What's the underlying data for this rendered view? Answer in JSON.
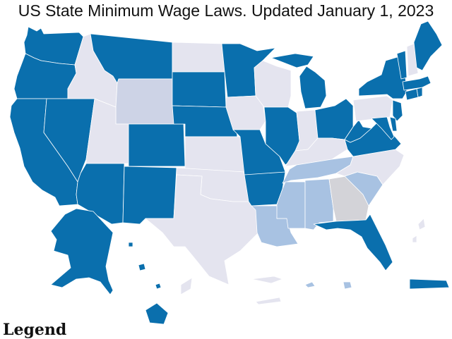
{
  "title": "US State Minimum Wage Laws. Updated January 1, 2023",
  "legend": {
    "heading": "Legend"
  },
  "colors": {
    "above_federal": "#0a6fad",
    "no_state_minimum": "#e4e4ef",
    "below_federal": "#cdd3e6",
    "equal_federal": "#a8c2e2",
    "light_gray": "#d3d3d8"
  },
  "states": [
    {
      "name": "Washington",
      "category": "above_federal"
    },
    {
      "name": "Oregon",
      "category": "above_federal"
    },
    {
      "name": "California",
      "category": "above_federal"
    },
    {
      "name": "Nevada",
      "category": "above_federal"
    },
    {
      "name": "Idaho",
      "category": "no_state_minimum"
    },
    {
      "name": "Montana",
      "category": "above_federal"
    },
    {
      "name": "Wyoming",
      "category": "below_federal"
    },
    {
      "name": "Utah",
      "category": "no_state_minimum"
    },
    {
      "name": "Arizona",
      "category": "above_federal"
    },
    {
      "name": "Colorado",
      "category": "above_federal"
    },
    {
      "name": "New Mexico",
      "category": "above_federal"
    },
    {
      "name": "North Dakota",
      "category": "no_state_minimum"
    },
    {
      "name": "South Dakota",
      "category": "above_federal"
    },
    {
      "name": "Nebraska",
      "category": "above_federal"
    },
    {
      "name": "Kansas",
      "category": "no_state_minimum"
    },
    {
      "name": "Oklahoma",
      "category": "no_state_minimum"
    },
    {
      "name": "Texas",
      "category": "no_state_minimum"
    },
    {
      "name": "Minnesota",
      "category": "above_federal"
    },
    {
      "name": "Iowa",
      "category": "no_state_minimum"
    },
    {
      "name": "Missouri",
      "category": "above_federal"
    },
    {
      "name": "Arkansas",
      "category": "above_federal"
    },
    {
      "name": "Louisiana",
      "category": "equal_federal"
    },
    {
      "name": "Wisconsin",
      "category": "no_state_minimum"
    },
    {
      "name": "Illinois",
      "category": "above_federal"
    },
    {
      "name": "Michigan",
      "category": "above_federal"
    },
    {
      "name": "Indiana",
      "category": "no_state_minimum"
    },
    {
      "name": "Ohio",
      "category": "above_federal"
    },
    {
      "name": "Kentucky",
      "category": "no_state_minimum"
    },
    {
      "name": "Tennessee",
      "category": "equal_federal"
    },
    {
      "name": "Mississippi",
      "category": "equal_federal"
    },
    {
      "name": "Alabama",
      "category": "equal_federal"
    },
    {
      "name": "Georgia",
      "category": "light_gray"
    },
    {
      "name": "Florida",
      "category": "above_federal"
    },
    {
      "name": "South Carolina",
      "category": "equal_federal"
    },
    {
      "name": "North Carolina",
      "category": "no_state_minimum"
    },
    {
      "name": "Virginia",
      "category": "above_federal"
    },
    {
      "name": "West Virginia",
      "category": "above_federal"
    },
    {
      "name": "Pennsylvania",
      "category": "no_state_minimum"
    },
    {
      "name": "New York",
      "category": "above_federal"
    },
    {
      "name": "Vermont",
      "category": "above_federal"
    },
    {
      "name": "New Hampshire",
      "category": "no_state_minimum"
    },
    {
      "name": "Maine",
      "category": "above_federal"
    },
    {
      "name": "Massachusetts",
      "category": "above_federal"
    },
    {
      "name": "Rhode Island",
      "category": "above_federal"
    },
    {
      "name": "Connecticut",
      "category": "above_federal"
    },
    {
      "name": "New Jersey",
      "category": "above_federal"
    },
    {
      "name": "Delaware",
      "category": "above_federal"
    },
    {
      "name": "Maryland",
      "category": "above_federal"
    },
    {
      "name": "Alaska",
      "category": "above_federal"
    },
    {
      "name": "Hawaii",
      "category": "above_federal"
    },
    {
      "name": "Puerto Rico",
      "category": "above_federal"
    },
    {
      "name": "U.S. Virgin Islands",
      "category": "no_state_minimum"
    },
    {
      "name": "American Samoa",
      "category": "equal_federal"
    },
    {
      "name": "Guam",
      "category": "equal_federal"
    },
    {
      "name": "Northern Mariana Islands",
      "category": "no_state_minimum"
    }
  ]
}
